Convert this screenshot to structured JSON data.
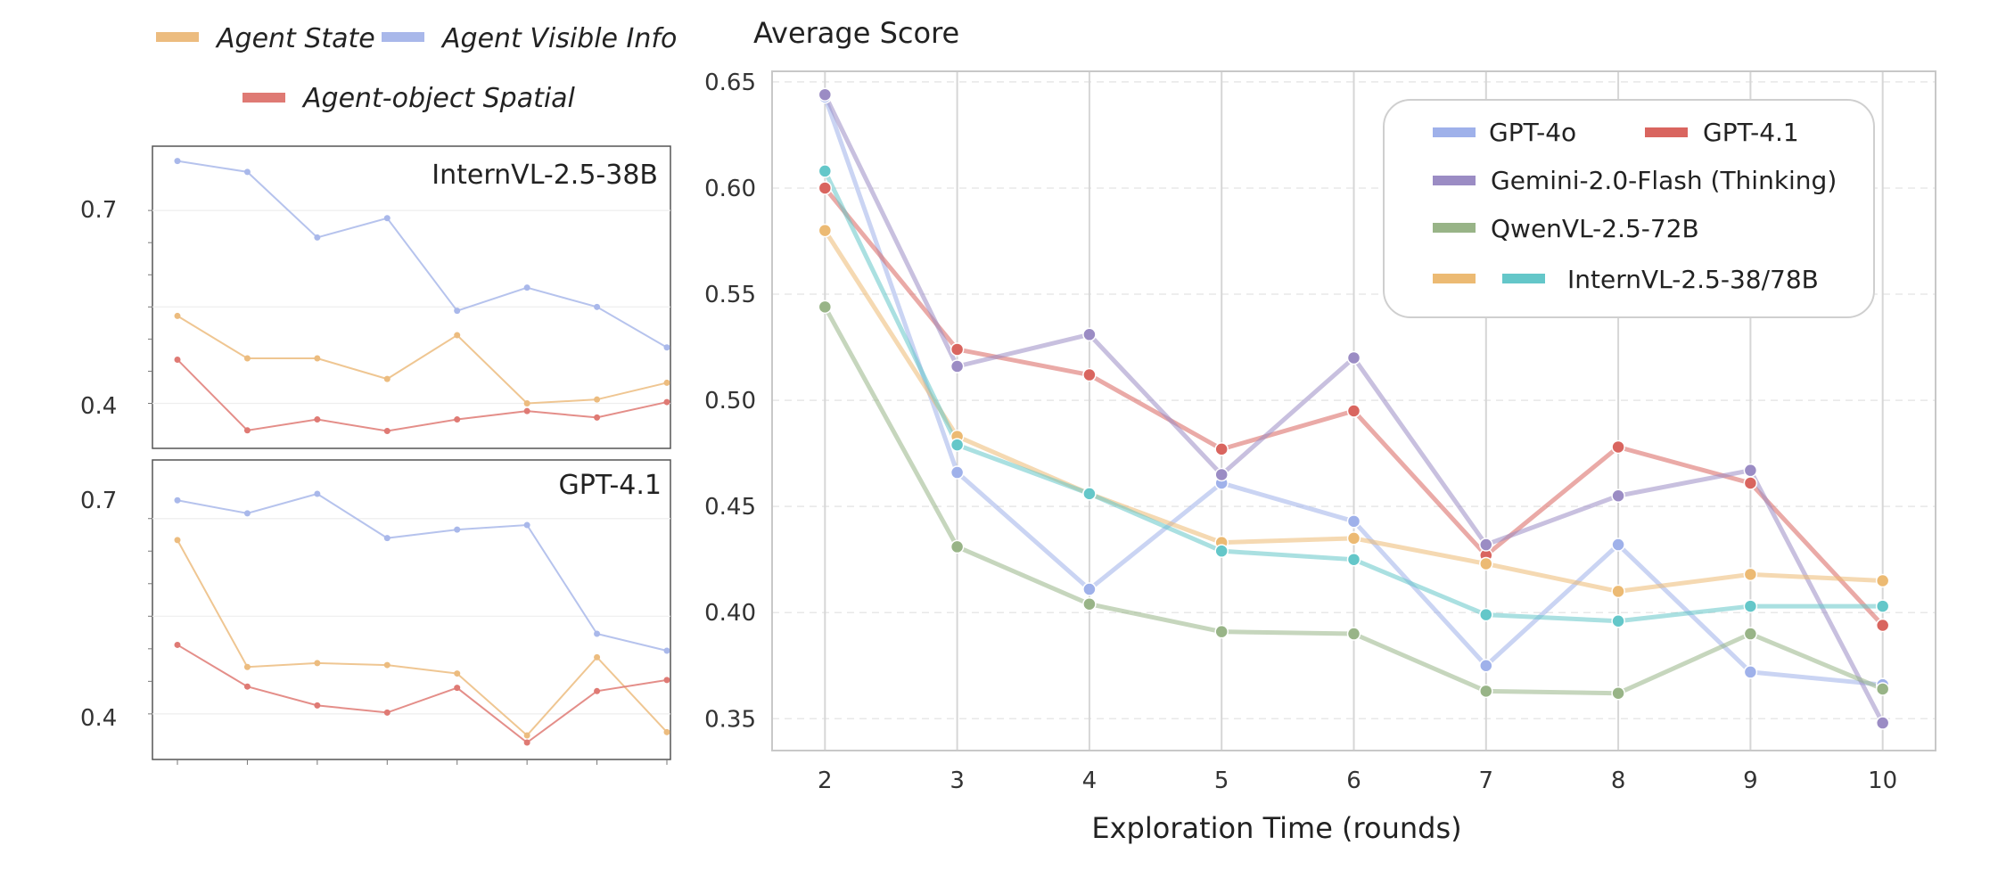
{
  "chart_data": [
    {
      "type": "line",
      "title": "Average Score",
      "xlabel": "Exploration Time (rounds)",
      "ylabel": "",
      "x": [
        2,
        3,
        4,
        5,
        6,
        7,
        8,
        9,
        10
      ],
      "xlim": [
        1.6,
        10.4
      ],
      "ylim": [
        0.335,
        0.655
      ],
      "yticks": [
        "0.35",
        "0.40",
        "0.45",
        "0.50",
        "0.55",
        "0.60",
        "0.65"
      ],
      "xticks": [
        "2",
        "3",
        "4",
        "5",
        "6",
        "7",
        "8",
        "9",
        "10"
      ],
      "grid": "on",
      "legend_position": "top-right",
      "legend": {
        "gpt4o": "GPT-4o",
        "gpt41": "GPT-4.1",
        "gemini": "Gemini-2.0-Flash (Thinking)",
        "qwen": "QwenVL-2.5-72B",
        "internvl": "InternVL-2.5-38/78B"
      },
      "series": [
        {
          "key": "gpt4o",
          "color": "#9fb1ea",
          "values": [
            0.643,
            0.466,
            0.411,
            0.461,
            0.443,
            0.375,
            0.432,
            0.372,
            0.366
          ]
        },
        {
          "key": "gpt41",
          "color": "#d9655f",
          "values": [
            0.6,
            0.524,
            0.512,
            0.477,
            0.495,
            0.427,
            0.478,
            0.461,
            0.394
          ]
        },
        {
          "key": "gemini",
          "color": "#9b8cc4",
          "values": [
            0.644,
            0.516,
            0.531,
            0.465,
            0.52,
            0.432,
            0.455,
            0.467,
            0.348
          ]
        },
        {
          "key": "qwen",
          "color": "#98b487",
          "values": [
            0.544,
            0.431,
            0.404,
            0.391,
            0.39,
            0.363,
            0.362,
            0.39,
            0.364
          ]
        },
        {
          "key": "internvl38",
          "color": "#ecba73",
          "values": [
            0.58,
            0.483,
            0.456,
            0.433,
            0.435,
            0.423,
            0.41,
            0.418,
            0.415
          ]
        },
        {
          "key": "internvl78",
          "color": "#64c7c9",
          "values": [
            0.608,
            0.479,
            0.456,
            0.429,
            0.425,
            0.399,
            0.396,
            0.403,
            0.403
          ]
        }
      ]
    },
    {
      "type": "line",
      "panel_label": "InternVL-2.5-38B",
      "x": [
        1,
        2,
        3,
        4,
        5,
        6,
        7,
        8
      ],
      "ylim": [
        0.33,
        0.8
      ],
      "yticks": [
        "0.4",
        "0.7"
      ],
      "series": [
        {
          "key": "agent_visible",
          "color": "#a9b8ea",
          "values": [
            0.777,
            0.76,
            0.658,
            0.688,
            0.544,
            0.58,
            0.55,
            0.487
          ]
        },
        {
          "key": "agent_state",
          "color": "#ecbc7f",
          "values": [
            0.536,
            0.47,
            0.47,
            0.438,
            0.506,
            0.4,
            0.406,
            0.432
          ]
        },
        {
          "key": "agent_object",
          "color": "#df7a74",
          "values": [
            0.468,
            0.358,
            0.375,
            0.357,
            0.375,
            0.388,
            0.378,
            0.402
          ]
        }
      ]
    },
    {
      "type": "line",
      "panel_label": "GPT-4.1",
      "x": [
        1,
        2,
        3,
        4,
        5,
        6,
        7,
        8
      ],
      "ylim": [
        0.33,
        0.79
      ],
      "yticks": [
        "0.4",
        "0.7"
      ],
      "series": [
        {
          "key": "agent_visible",
          "color": "#a9b8ea",
          "values": [
            0.728,
            0.708,
            0.738,
            0.67,
            0.683,
            0.69,
            0.523,
            0.497
          ]
        },
        {
          "key": "agent_state",
          "color": "#ecbc7f",
          "values": [
            0.667,
            0.472,
            0.478,
            0.475,
            0.462,
            0.367,
            0.487,
            0.372
          ]
        },
        {
          "key": "agent_object",
          "color": "#df7a74",
          "values": [
            0.506,
            0.442,
            0.413,
            0.402,
            0.44,
            0.356,
            0.435,
            0.452
          ]
        }
      ]
    }
  ],
  "small_legend": {
    "agent_state": "Agent State",
    "agent_visible": "Agent Visible Info",
    "agent_object": "Agent-object Spatial"
  }
}
